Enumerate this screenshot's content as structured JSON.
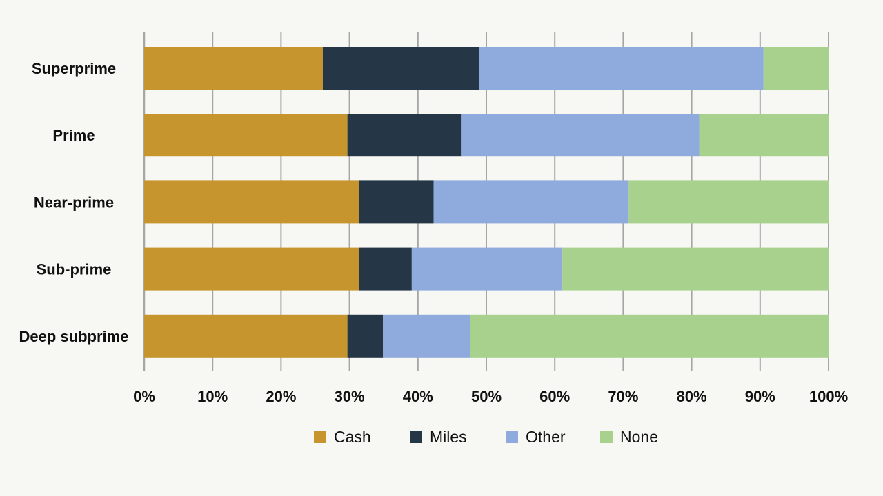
{
  "chart_data": {
    "type": "bar",
    "orientation": "horizontal",
    "stacked": "percent",
    "title": "",
    "xlabel": "",
    "ylabel": "",
    "xlim": [
      0,
      100
    ],
    "x_ticks": [
      "0%",
      "10%",
      "20%",
      "30%",
      "40%",
      "50%",
      "60%",
      "70%",
      "80%",
      "90%",
      "100%"
    ],
    "grid": true,
    "legend_position": "bottom",
    "categories": [
      "Superprime",
      "Prime",
      "Near-prime",
      "Sub-prime",
      "Deep subprime"
    ],
    "series": [
      {
        "name": "Cash",
        "color": "#c6952e",
        "values": [
          26.1,
          29.7,
          31.4,
          31.4,
          29.7
        ]
      },
      {
        "name": "Miles",
        "color": "#253746",
        "values": [
          22.8,
          16.6,
          10.9,
          7.7,
          5.2
        ]
      },
      {
        "name": "Other",
        "color": "#8faadc",
        "values": [
          41.6,
          34.8,
          28.5,
          22.0,
          12.7
        ]
      },
      {
        "name": "None",
        "color": "#a9d18e",
        "values": [
          9.5,
          18.9,
          29.2,
          38.9,
          52.4
        ]
      }
    ]
  }
}
